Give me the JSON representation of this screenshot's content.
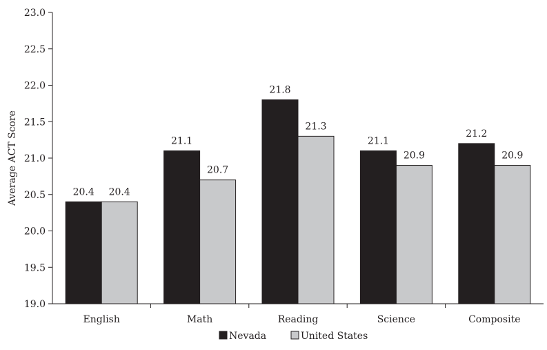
{
  "chart_data": {
    "type": "bar",
    "title": "",
    "xlabel": "",
    "ylabel": "Average ACT Score",
    "ylim": [
      19.0,
      23.0
    ],
    "yticks": [
      "19.0",
      "19.5",
      "20.0",
      "20.5",
      "21.0",
      "21.5",
      "22.0",
      "22.5",
      "23.0"
    ],
    "categories": [
      "English",
      "Math",
      "Reading",
      "Science",
      "Composite"
    ],
    "series": [
      {
        "name": "Nevada",
        "color": "#231f20",
        "values": [
          20.4,
          21.1,
          21.8,
          21.1,
          21.2
        ],
        "labels": [
          "20.4",
          "21.1",
          "21.8",
          "21.1",
          "21.2"
        ]
      },
      {
        "name": "United States",
        "color": "#c8c9cb",
        "values": [
          20.4,
          20.7,
          21.3,
          20.9,
          20.9
        ],
        "labels": [
          "20.4",
          "20.7",
          "21.3",
          "20.9",
          "20.9"
        ]
      }
    ],
    "grid": false,
    "legend_position": "bottom"
  }
}
